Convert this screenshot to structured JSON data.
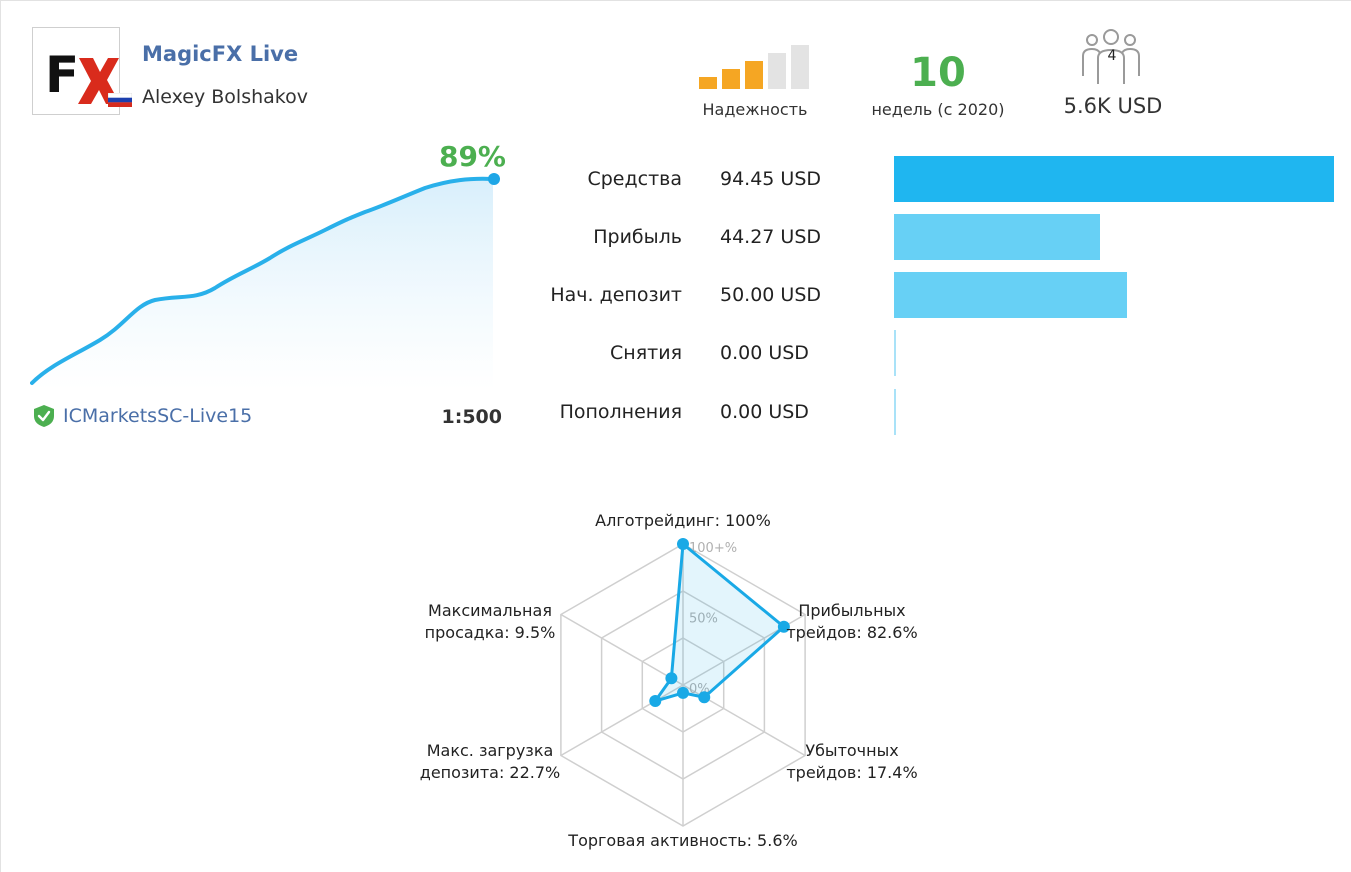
{
  "header": {
    "signal_name": "MagicFX Live",
    "author": "Alexey Bolshakov",
    "logo_text": "FX",
    "country_flag_icon": "russia-flag-icon"
  },
  "reliability": {
    "label": "Надежность",
    "level": 3,
    "max_level": 5,
    "active_color": "#f5a623",
    "inactive_color": "#e3e3e3"
  },
  "weeks": {
    "value": "10",
    "label": "недель (с 2020)"
  },
  "subscribers": {
    "count": "4",
    "funds": "5.6K USD",
    "icon": "people-icon"
  },
  "growth": {
    "value": "89%",
    "broker": "ICMarketsSC-Live15",
    "leverage": "1:500",
    "broker_icon": "shield-check-icon",
    "line_color": "#29b0ea"
  },
  "stats": [
    {
      "label": "Средства",
      "value": "94.45 USD",
      "amount": 94.45,
      "color": "#1fb6f0"
    },
    {
      "label": "Прибыль",
      "value": "44.27 USD",
      "amount": 44.27,
      "color": "#67d0f5"
    },
    {
      "label": "Нач. депозит",
      "value": "50.00 USD",
      "amount": 50.0,
      "color": "#67d0f5"
    },
    {
      "label": "Снятия",
      "value": "0.00 USD",
      "amount": 0,
      "color": "#a9e2f8"
    },
    {
      "label": "Пополнения",
      "value": "0.00 USD",
      "amount": 0,
      "color": "#a9e2f8"
    }
  ],
  "radar": {
    "scale_labels": [
      "100+%",
      "50%",
      "0%"
    ],
    "axes": [
      {
        "label_lines": [
          "Алготрейдинг: 100%"
        ],
        "value": 100
      },
      {
        "label_lines": [
          "Прибыльных",
          "трейдов: 82.6%"
        ],
        "value": 82.6
      },
      {
        "label_lines": [
          "Убыточных",
          "трейдов: 17.4%"
        ],
        "value": 17.4
      },
      {
        "label_lines": [
          "Торговая активность: 5.6%"
        ],
        "value": 5.6
      },
      {
        "label_lines": [
          "Макс. загрузка",
          "депозита: 22.7%"
        ],
        "value": 22.7
      },
      {
        "label_lines": [
          "Максимальная",
          "просадка: 9.5%"
        ],
        "value": 9.5
      }
    ],
    "color": "#19a9e6"
  }
}
